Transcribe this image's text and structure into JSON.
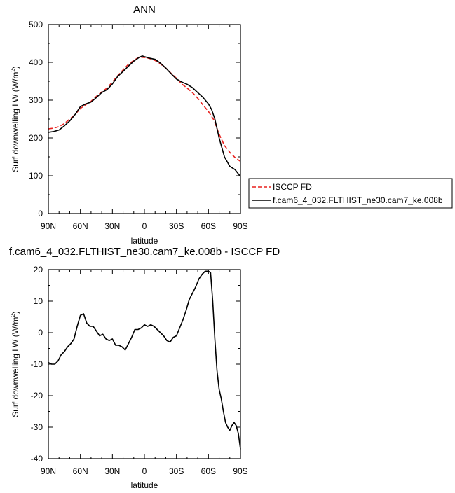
{
  "chart_data": [
    {
      "type": "line",
      "title": "ANN",
      "xlabel": "latitude",
      "ylabel_main": "Surf downwelling LW (W/m",
      "ylabel_sup": "2",
      "ylabel_tail": ")",
      "xlim": [
        90,
        -90
      ],
      "ylim": [
        0,
        500
      ],
      "x_ticks": [
        90,
        60,
        30,
        0,
        -30,
        -60,
        -90
      ],
      "x_tick_labels": [
        "90N",
        "60N",
        "30N",
        "0",
        "30S",
        "60S",
        "90S"
      ],
      "y_ticks": [
        0,
        100,
        200,
        300,
        400,
        500
      ],
      "y_tick_labels": [
        "0",
        "100",
        "200",
        "300",
        "400",
        "500"
      ],
      "legend_position": "right",
      "series": [
        {
          "name": "ISCCP FD",
          "color": "#e8211e",
          "dash": "dashed",
          "x": [
            90,
            85,
            80,
            75,
            70,
            65,
            60,
            55,
            50,
            45,
            40,
            35,
            30,
            25,
            20,
            15,
            10,
            5,
            0,
            -5,
            -10,
            -15,
            -20,
            -25,
            -30,
            -35,
            -40,
            -45,
            -50,
            -55,
            -60,
            -65,
            -70,
            -75,
            -80,
            -85,
            -90
          ],
          "values": [
            224,
            226,
            230,
            238,
            250,
            262,
            278,
            288,
            297,
            310,
            322,
            332,
            348,
            365,
            380,
            395,
            405,
            414,
            413,
            410,
            405,
            396,
            385,
            371,
            358,
            343,
            332,
            320,
            305,
            287,
            270,
            248,
            210,
            180,
            162,
            148,
            138
          ]
        },
        {
          "name": "f.cam6_4_032.FLTHIST_ne30.cam7_ke.008b",
          "color": "#000000",
          "dash": "solid",
          "x": [
            90,
            85,
            80,
            75,
            70,
            65,
            60,
            55,
            50,
            45,
            40,
            35,
            30,
            25,
            20,
            15,
            10,
            5,
            2,
            0,
            -5,
            -10,
            -15,
            -20,
            -25,
            -30,
            -35,
            -40,
            -45,
            -50,
            -55,
            -60,
            -63,
            -66,
            -70,
            -75,
            -80,
            -85,
            -90
          ],
          "values": [
            215,
            217,
            221,
            232,
            245,
            262,
            283,
            290,
            295,
            307,
            320,
            328,
            343,
            363,
            376,
            390,
            403,
            413,
            417,
            415,
            411,
            408,
            398,
            385,
            370,
            356,
            348,
            342,
            333,
            320,
            307,
            290,
            275,
            250,
            200,
            150,
            125,
            116,
            98
          ]
        }
      ]
    },
    {
      "type": "line",
      "title": "f.cam6_4_032.FLTHIST_ne30.cam7_ke.008b - ISCCP FD",
      "xlabel": "latitude",
      "ylabel_main": "Surf downwelling LW (W/m",
      "ylabel_sup": "2",
      "ylabel_tail": ")",
      "xlim": [
        90,
        -90
      ],
      "ylim": [
        -40,
        20
      ],
      "x_ticks": [
        90,
        60,
        30,
        0,
        -30,
        -60,
        -90
      ],
      "x_tick_labels": [
        "90N",
        "60N",
        "30N",
        "0",
        "30S",
        "60S",
        "90S"
      ],
      "y_ticks": [
        -40,
        -30,
        -20,
        -10,
        0,
        10,
        20
      ],
      "y_tick_labels": [
        "-40",
        "-30",
        "-20",
        "-10",
        "0",
        "10",
        "20"
      ],
      "series": [
        {
          "color": "#000000",
          "dash": "solid",
          "x": [
            90,
            87,
            84,
            81,
            78,
            75,
            72,
            69,
            66,
            63,
            60,
            57,
            54,
            51,
            48,
            45,
            42,
            39,
            36,
            33,
            30,
            27,
            24,
            21,
            18,
            15,
            12,
            9,
            6,
            3,
            0,
            -3,
            -6,
            -9,
            -12,
            -15,
            -18,
            -21,
            -24,
            -27,
            -30,
            -33,
            -36,
            -39,
            -42,
            -45,
            -48,
            -51,
            -54,
            -57,
            -60,
            -62,
            -64,
            -66,
            -68,
            -70,
            -72,
            -74,
            -76,
            -78,
            -80,
            -82,
            -84,
            -86,
            -88,
            -90
          ],
          "values": [
            -9.5,
            -10.0,
            -10.0,
            -9.0,
            -7.0,
            -6.0,
            -4.5,
            -3.5,
            -2.0,
            2.0,
            5.5,
            6.0,
            3.0,
            2.0,
            2.0,
            0.5,
            -1.0,
            -0.5,
            -2.0,
            -2.5,
            -2.0,
            -4.0,
            -4.0,
            -4.5,
            -5.5,
            -3.5,
            -1.5,
            1.0,
            1.0,
            1.5,
            2.5,
            2.0,
            2.5,
            2.0,
            1.0,
            0.0,
            -1.0,
            -2.5,
            -3.0,
            -1.5,
            -1.0,
            1.5,
            4.0,
            7.0,
            10.5,
            12.5,
            14.5,
            17.0,
            18.5,
            19.5,
            19.5,
            19.0,
            10.0,
            -2.0,
            -12.0,
            -18.0,
            -21.0,
            -25.0,
            -28.5,
            -30.0,
            -31.0,
            -29.5,
            -28.5,
            -29.5,
            -32.0,
            -37.0
          ]
        }
      ]
    }
  ]
}
